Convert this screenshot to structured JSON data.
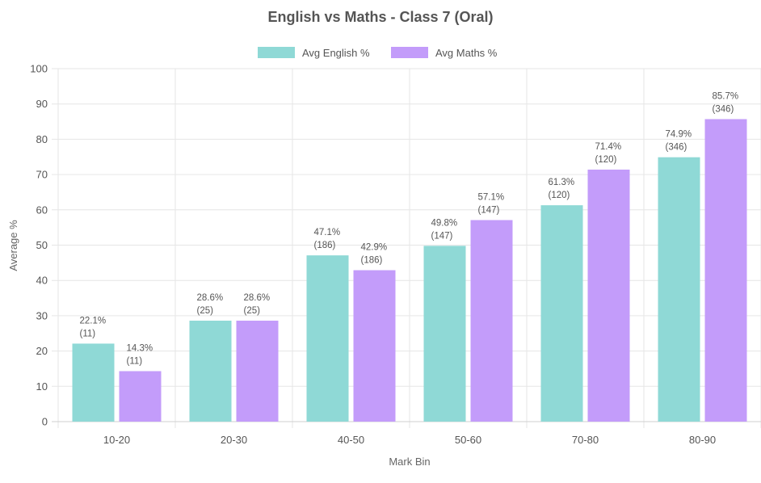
{
  "chart_data": {
    "type": "bar",
    "title": "English vs Maths - Class 7 (Oral)",
    "xlabel": "Mark Bin",
    "ylabel": "Average %",
    "ylim": [
      0,
      100
    ],
    "yticks": [
      0,
      10,
      20,
      30,
      40,
      50,
      60,
      70,
      80,
      90,
      100
    ],
    "grid": true,
    "legend_position": "top-center",
    "categories": [
      "10-20",
      "20-30",
      "40-50",
      "50-60",
      "70-80",
      "80-90"
    ],
    "series": [
      {
        "name": "Avg English %",
        "color": "#8fd9d6",
        "values": [
          22.1,
          28.6,
          47.1,
          49.8,
          61.3,
          74.9
        ],
        "labels": [
          "22.1%",
          "28.6%",
          "47.1%",
          "49.8%",
          "61.3%",
          "74.9%"
        ],
        "counts": [
          "(11)",
          "(25)",
          "(186)",
          "(147)",
          "(120)",
          "(346)"
        ]
      },
      {
        "name": "Avg Maths %",
        "color": "#c39cfa",
        "values": [
          14.3,
          28.6,
          42.9,
          57.1,
          71.4,
          85.7
        ],
        "labels": [
          "14.3%",
          "28.6%",
          "42.9%",
          "57.1%",
          "71.4%",
          "85.7%"
        ],
        "counts": [
          "(11)",
          "(25)",
          "(186)",
          "(147)",
          "(120)",
          "(346)"
        ]
      }
    ]
  }
}
